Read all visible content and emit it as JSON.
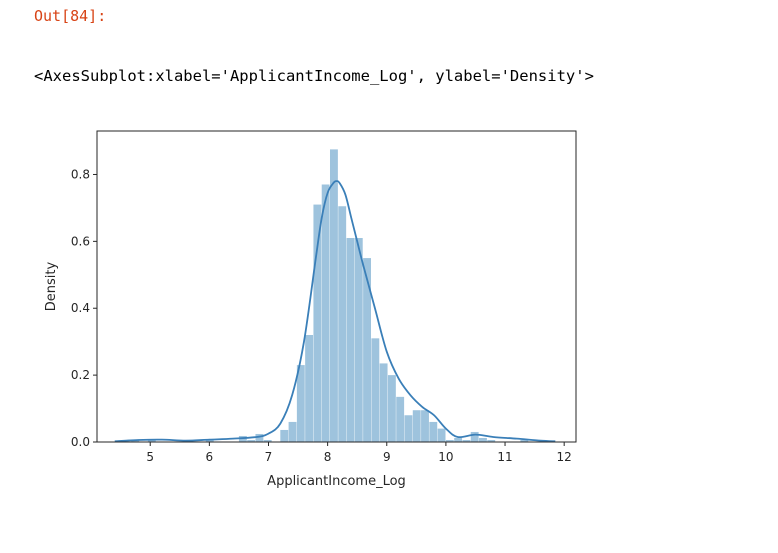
{
  "cell": {
    "prompt": "Out[84]:",
    "output_text": "<AxesSubplot:xlabel='ApplicantIncome_Log', ylabel='Density'>"
  },
  "chart_data": {
    "type": "bar",
    "xlabel": "ApplicantIncome_Log",
    "ylabel": "Density",
    "xlim": [
      4.1,
      12.2
    ],
    "ylim": [
      0,
      0.93
    ],
    "xticks": [
      5,
      6,
      7,
      8,
      9,
      10,
      11,
      12
    ],
    "yticks": [
      0.0,
      0.2,
      0.4,
      0.6,
      0.8
    ],
    "ytick_labels": [
      "0.0",
      "0.2",
      "0.4",
      "0.6",
      "0.8"
    ],
    "grid": false,
    "colors": {
      "bars": "#9ec3dd",
      "kde": "#3a7fb8",
      "axis": "#262626"
    },
    "histogram": {
      "bin_edges": [
        4.4,
        4.54,
        4.68,
        4.82,
        4.96,
        5.1,
        5.24,
        5.38,
        5.52,
        5.66,
        5.8,
        5.94,
        6.08,
        6.22,
        6.36,
        6.5,
        6.64,
        6.78,
        6.92,
        7.06,
        7.2,
        7.34,
        7.48,
        7.62,
        7.76,
        7.9,
        8.04,
        8.18,
        8.32,
        8.46,
        8.6,
        8.74,
        8.88,
        9.02,
        9.16,
        9.3,
        9.44,
        9.58,
        9.72,
        9.86,
        10.0,
        10.14,
        10.28,
        10.42,
        10.56,
        10.7,
        10.84,
        10.98,
        11.12,
        11.26,
        11.4,
        11.54,
        11.68,
        11.82
      ],
      "densities": [
        0,
        0,
        0.006,
        0,
        0.006,
        0,
        0,
        0,
        0,
        0,
        0,
        0.006,
        0,
        0,
        0,
        0.018,
        0.006,
        0.024,
        0.006,
        0,
        0.036,
        0.06,
        0.23,
        0.32,
        0.71,
        0.77,
        0.875,
        0.705,
        0.61,
        0.61,
        0.55,
        0.31,
        0.235,
        0.2,
        0.135,
        0.08,
        0.095,
        0.095,
        0.06,
        0.04,
        0.006,
        0.012,
        0.006,
        0.03,
        0.012,
        0.006,
        0,
        0,
        0,
        0.006,
        0,
        0,
        0
      ]
    },
    "kde": {
      "x": [
        4.4,
        4.8,
        5.2,
        5.6,
        6.0,
        6.4,
        6.8,
        7.0,
        7.2,
        7.4,
        7.6,
        7.8,
        7.9,
        8.0,
        8.1,
        8.15,
        8.2,
        8.3,
        8.4,
        8.5,
        8.6,
        8.8,
        9.0,
        9.2,
        9.4,
        9.6,
        9.8,
        10.0,
        10.2,
        10.5,
        10.8,
        11.2,
        11.6,
        11.85
      ],
      "y": [
        0.002,
        0.006,
        0.007,
        0.004,
        0.007,
        0.01,
        0.015,
        0.025,
        0.055,
        0.14,
        0.3,
        0.55,
        0.67,
        0.745,
        0.775,
        0.78,
        0.775,
        0.74,
        0.67,
        0.6,
        0.53,
        0.4,
        0.27,
        0.19,
        0.14,
        0.105,
        0.08,
        0.04,
        0.015,
        0.022,
        0.015,
        0.01,
        0.004,
        0.002
      ]
    }
  }
}
